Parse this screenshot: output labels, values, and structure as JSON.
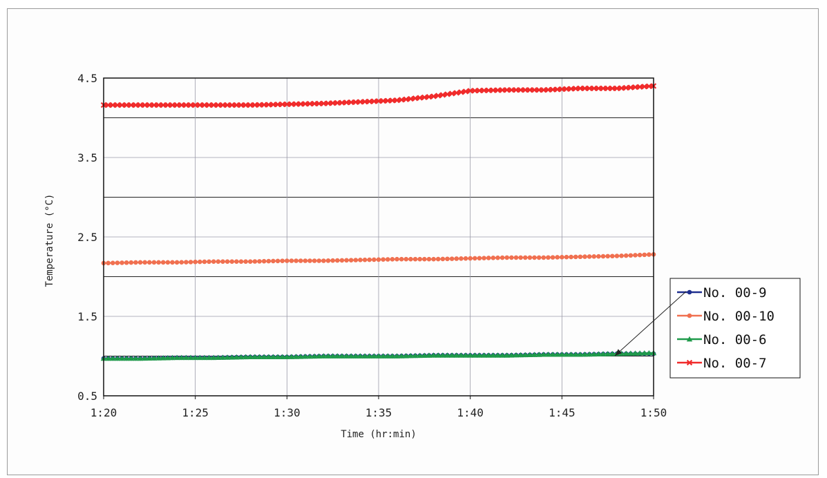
{
  "chart_data": {
    "type": "line",
    "title": "",
    "xlabel": "Time (hr:min)",
    "ylabel": "Temperature (°C)",
    "xlim": [
      "1:20",
      "1:50"
    ],
    "ylim": [
      0.5,
      4.5
    ],
    "x_ticks": [
      "1:20",
      "1:25",
      "1:30",
      "1:35",
      "1:40",
      "1:45",
      "1:50"
    ],
    "y_tick_labels": [
      "4.5",
      "3.5",
      "2.5",
      "1.5",
      "0.5"
    ],
    "grid": true,
    "legend_position": "right",
    "x": [
      "1:20",
      "1:22",
      "1:24",
      "1:26",
      "1:28",
      "1:30",
      "1:32",
      "1:34",
      "1:36",
      "1:38",
      "1:40",
      "1:42",
      "1:44",
      "1:46",
      "1:48",
      "1:50"
    ],
    "series": [
      {
        "name": "No. 00-9",
        "color": "#1f2f8f",
        "marker": "circle",
        "values": [
          0.97,
          0.97,
          0.98,
          0.98,
          0.99,
          0.99,
          1.0,
          1.0,
          1.0,
          1.01,
          1.01,
          1.01,
          1.02,
          1.02,
          1.03,
          1.03
        ]
      },
      {
        "name": "No. 00-10",
        "color": "#f07050",
        "marker": "circle",
        "values": [
          2.17,
          2.18,
          2.18,
          2.19,
          2.19,
          2.2,
          2.2,
          2.21,
          2.22,
          2.22,
          2.23,
          2.24,
          2.24,
          2.25,
          2.26,
          2.28
        ]
      },
      {
        "name": "No. 00-6",
        "color": "#1f9a4a",
        "marker": "triangle",
        "values": [
          0.97,
          0.97,
          0.98,
          0.98,
          0.99,
          0.99,
          1.0,
          1.0,
          1.0,
          1.01,
          1.01,
          1.01,
          1.02,
          1.02,
          1.03,
          1.04
        ]
      },
      {
        "name": "No. 00-7",
        "color": "#f02a2a",
        "marker": "x",
        "values": [
          4.16,
          4.16,
          4.16,
          4.16,
          4.16,
          4.17,
          4.18,
          4.2,
          4.22,
          4.27,
          4.34,
          4.35,
          4.35,
          4.37,
          4.37,
          4.4
        ]
      }
    ]
  }
}
